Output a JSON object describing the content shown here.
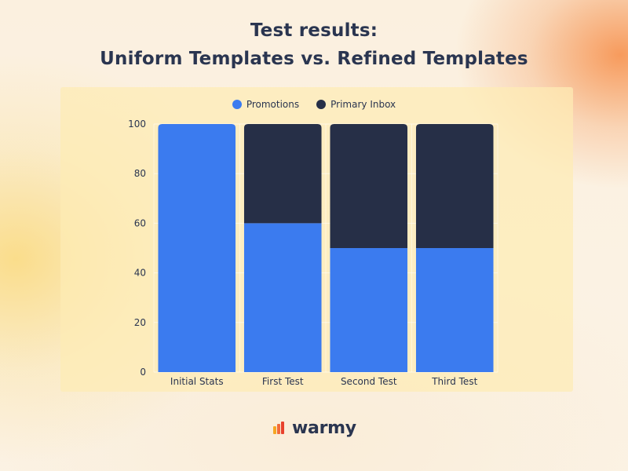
{
  "title_line1": "Test results:",
  "title_line2": "Uniform Templates vs. Refined Templates",
  "brand": "warmy",
  "chart_data": {
    "type": "bar",
    "stacked": true,
    "categories": [
      "Initial Stats",
      "First Test",
      "Second Test",
      "Third Test"
    ],
    "series": [
      {
        "name": "Promotions",
        "values": [
          100,
          60,
          50,
          50
        ],
        "color": "#3b7bef"
      },
      {
        "name": "Primary Inbox",
        "values": [
          0,
          40,
          50,
          50
        ],
        "color": "#262f47"
      }
    ],
    "ylim": [
      0,
      100
    ],
    "yticks": [
      0,
      20,
      40,
      60,
      80,
      100
    ],
    "grid": true,
    "legend_position": "top-center"
  }
}
